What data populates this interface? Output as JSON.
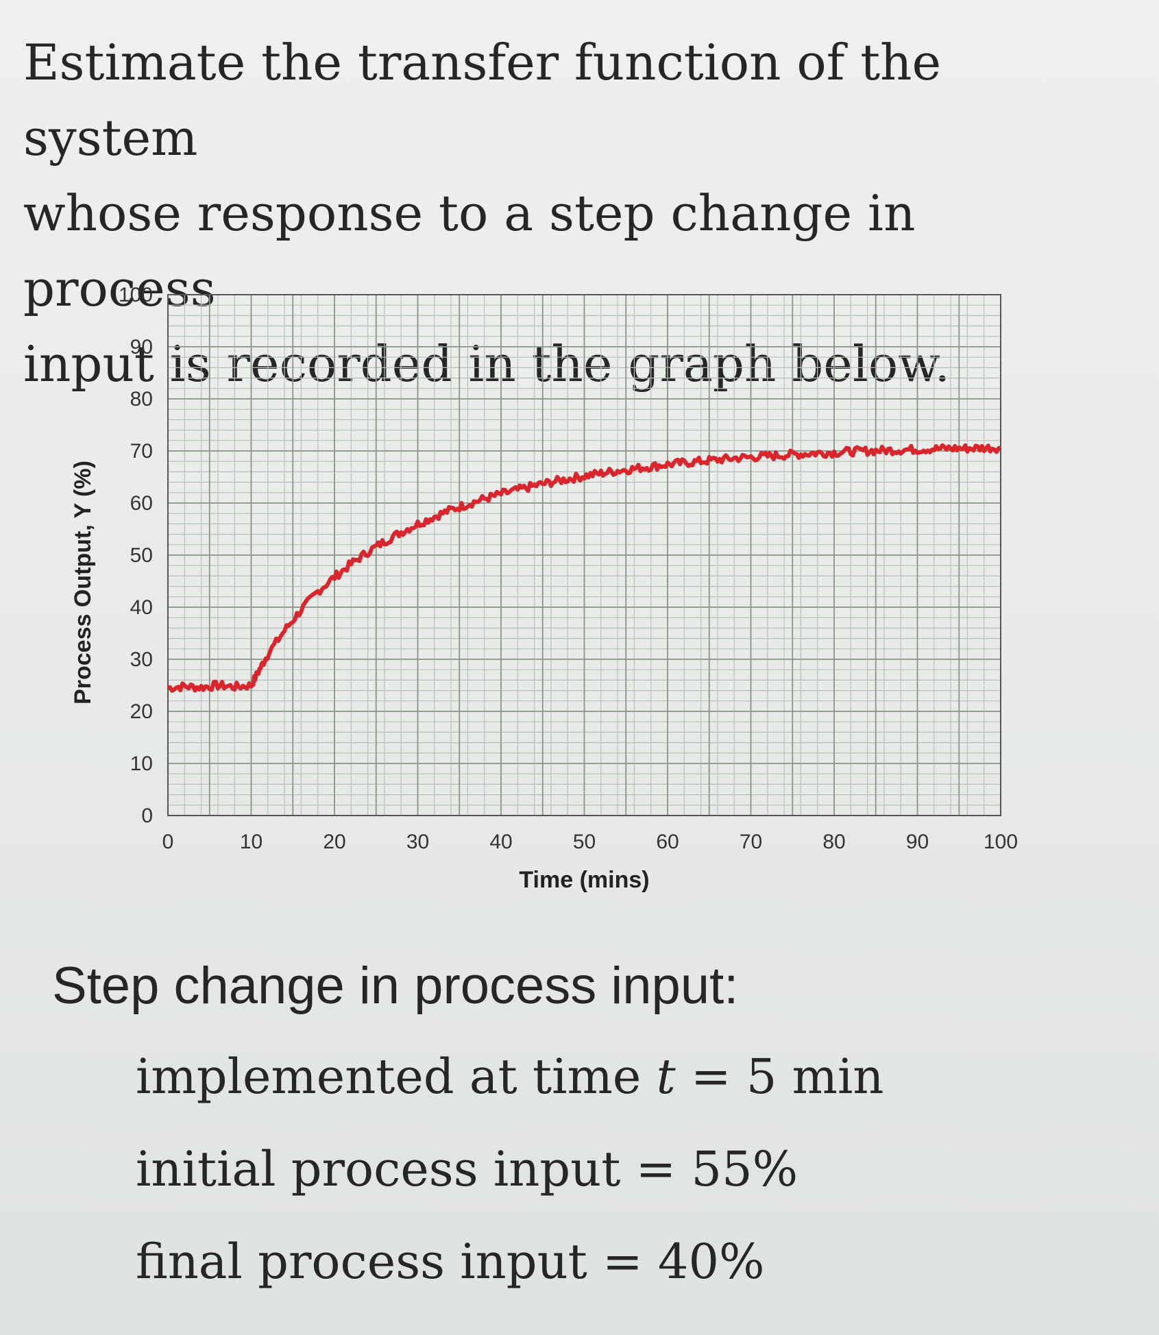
{
  "question": {
    "line1": "Estimate the transfer function of the system",
    "line2": "whose response to a step change in process",
    "line3": "input is recorded in the graph below."
  },
  "chart_data": {
    "type": "line",
    "title": "",
    "xlabel": "Time (mins)",
    "ylabel": "Process Output, Y (%)",
    "xlim": [
      0,
      100
    ],
    "ylim": [
      0,
      100
    ],
    "x_ticks": [
      "0",
      "10",
      "20",
      "30",
      "40",
      "50",
      "60",
      "70",
      "80",
      "90",
      "100"
    ],
    "y_ticks": [
      "0",
      "10",
      "20",
      "30",
      "40",
      "50",
      "60",
      "70",
      "80",
      "90",
      "100"
    ],
    "grid": true,
    "series_color": "#d8262c",
    "series": [
      {
        "x": [
          0,
          2,
          4,
          6,
          8,
          10,
          11,
          12,
          14,
          16,
          18,
          20,
          22,
          24,
          26,
          28,
          30,
          32,
          34,
          36,
          38,
          40,
          42,
          44,
          46,
          48,
          50,
          52,
          54,
          56,
          58,
          60,
          62,
          64,
          66,
          68,
          70,
          72,
          74,
          76,
          78,
          80,
          82,
          84,
          86,
          88,
          90,
          92,
          94,
          96,
          98,
          100
        ],
        "y": [
          24.5,
          24.8,
          24.6,
          25.0,
          24.7,
          25.0,
          28.0,
          31.0,
          35.5,
          39.5,
          43.0,
          45.8,
          48.3,
          50.6,
          52.6,
          54.4,
          56.0,
          57.4,
          58.7,
          59.8,
          60.8,
          61.7,
          62.5,
          63.3,
          64.0,
          64.6,
          65.2,
          65.7,
          66.2,
          66.6,
          67.0,
          67.4,
          67.7,
          68.0,
          68.3,
          68.6,
          68.8,
          69.0,
          69.2,
          69.4,
          69.6,
          69.7,
          69.9,
          70.0,
          70.1,
          70.2,
          70.3,
          70.4,
          70.5,
          70.5,
          70.6,
          70.6
        ]
      }
    ]
  },
  "step": {
    "heading": "Step change in process input:",
    "line1_pre": "implemented at time ",
    "line1_var": "t",
    "line1_post": " = 5 min",
    "line2": "initial process input = 55%",
    "line3": "final process input = 40%"
  }
}
